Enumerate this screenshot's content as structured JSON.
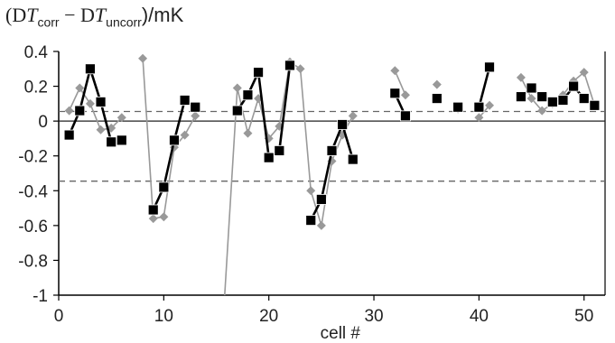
{
  "title": {
    "prefix": "(",
    "d1": "D",
    "t1": "T",
    "sub1": "corr",
    "minus": " − ",
    "d2": "D",
    "t2": "T",
    "sub2": "uncorr",
    "suffix": ")/mK"
  },
  "chart_data": {
    "type": "scatter",
    "xlabel": "cell #",
    "ylabel": "(DTcorr − DTuncorr)/mK",
    "xlim": [
      0,
      52
    ],
    "ylim": [
      -1,
      0.4
    ],
    "xticks": [
      0,
      10,
      20,
      30,
      40,
      50
    ],
    "yticks": [
      0.4,
      0.2,
      0,
      -0.2,
      -0.4,
      -0.6,
      -0.8,
      -1
    ],
    "ytick_labels": [
      "0.4",
      "0.2",
      "0",
      "-0.2",
      "-0.4",
      "-0.6",
      "-0.8",
      "-1"
    ],
    "reference_lines": [
      {
        "y": 0,
        "style": "solid"
      },
      {
        "y": 0.055,
        "style": "dashed"
      },
      {
        "y": -0.345,
        "style": "dashed"
      }
    ],
    "series": [
      {
        "marker": "square",
        "color": "#000000",
        "line": true,
        "segments": [
          [
            [
              1,
              -0.08
            ],
            [
              2,
              0.06
            ],
            [
              3,
              0.3
            ],
            [
              4,
              0.11
            ],
            [
              5,
              -0.12
            ],
            [
              6,
              -0.11
            ]
          ],
          [
            [
              9,
              -0.51
            ],
            [
              10,
              -0.38
            ],
            [
              11,
              -0.11
            ],
            [
              12,
              0.12
            ],
            [
              13,
              0.08
            ]
          ],
          [
            [
              17,
              0.06
            ],
            [
              18,
              0.15
            ],
            [
              19,
              0.28
            ],
            [
              20,
              -0.21
            ],
            [
              21,
              -0.17
            ],
            [
              22,
              0.32
            ]
          ],
          [
            [
              24,
              -0.57
            ],
            [
              25,
              -0.45
            ],
            [
              26,
              -0.17
            ],
            [
              27,
              -0.02
            ],
            [
              28,
              -0.22
            ]
          ],
          [
            [
              32,
              0.16
            ],
            [
              33,
              0.03
            ]
          ],
          [
            [
              36,
              0.13
            ]
          ],
          [
            [
              38,
              0.08
            ]
          ],
          [
            [
              40,
              0.08
            ],
            [
              41,
              0.31
            ]
          ],
          [
            [
              44,
              0.14
            ],
            [
              45,
              0.19
            ],
            [
              46,
              0.14
            ],
            [
              47,
              0.11
            ],
            [
              48,
              0.12
            ],
            [
              49,
              0.2
            ],
            [
              50,
              0.13
            ],
            [
              51,
              0.09
            ]
          ]
        ]
      },
      {
        "marker": "diamond",
        "color": "#999999",
        "line": true,
        "segments": [
          [
            [
              1,
              0.06
            ],
            [
              2,
              0.19
            ],
            [
              3,
              0.1
            ],
            [
              4,
              -0.05
            ],
            [
              5,
              -0.04
            ],
            [
              6,
              0.02
            ]
          ],
          [
            [
              8,
              0.36
            ],
            [
              9,
              -0.56
            ],
            [
              10,
              -0.55
            ],
            [
              11,
              -0.15
            ],
            [
              12,
              -0.08
            ],
            [
              13,
              0.03
            ]
          ],
          [
            [
              15.8,
              -1.0
            ],
            [
              17,
              0.19
            ],
            [
              18,
              -0.07
            ],
            [
              19,
              0.13
            ],
            [
              20,
              -0.1
            ],
            [
              21,
              -0.03
            ],
            [
              22,
              0.34
            ],
            [
              23,
              0.3
            ],
            [
              24,
              -0.4
            ],
            [
              25,
              -0.6
            ],
            [
              26,
              -0.23
            ],
            [
              27,
              -0.08
            ],
            [
              28,
              0.03
            ]
          ],
          [
            [
              32,
              0.29
            ],
            [
              33,
              0.15
            ]
          ],
          [
            [
              36,
              0.21
            ]
          ],
          [
            [
              38,
              0.07
            ]
          ],
          [
            [
              40,
              0.02
            ],
            [
              41,
              0.09
            ]
          ],
          [
            [
              44,
              0.25
            ],
            [
              45,
              0.13
            ],
            [
              46,
              0.06
            ],
            [
              47,
              0.1
            ],
            [
              48,
              0.15
            ],
            [
              49,
              0.23
            ],
            [
              50,
              0.28
            ],
            [
              51,
              0.09
            ]
          ]
        ]
      }
    ]
  }
}
